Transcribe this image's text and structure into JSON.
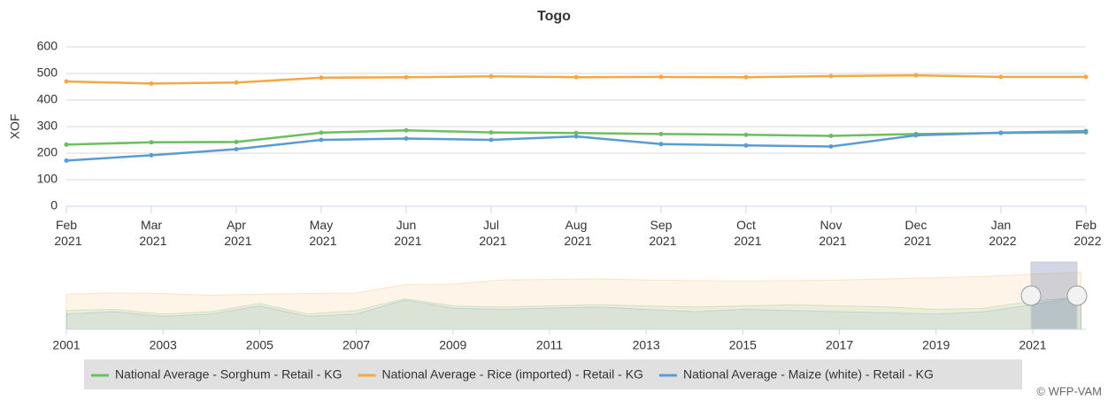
{
  "chart_data": {
    "type": "line",
    "title": "Togo",
    "y_label": "XOF",
    "categories": [
      "Feb 2021",
      "Mar 2021",
      "Apr 2021",
      "May 2021",
      "Jun 2021",
      "Jul 2021",
      "Aug 2021",
      "Sep 2021",
      "Oct 2021",
      "Nov 2021",
      "Dec 2021",
      "Jan 2022",
      "Feb 2022"
    ],
    "series": [
      {
        "name": "National Average - Sorghum - Retail - KG",
        "color": "#6abf5e",
        "values": [
          232,
          241,
          242,
          277,
          286,
          278,
          276,
          272,
          269,
          265,
          272,
          276,
          278
        ]
      },
      {
        "name": "National Average - Rice (imported) - Retail - KG",
        "color": "#f4a742",
        "values": [
          470,
          462,
          466,
          484,
          486,
          489,
          486,
          487,
          486,
          490,
          493,
          487,
          487
        ]
      },
      {
        "name": "National Average - Maize (white) - Retail - KG",
        "color": "#5b9bd5",
        "values": [
          172,
          192,
          215,
          250,
          255,
          250,
          263,
          234,
          229,
          225,
          267,
          277,
          283
        ]
      }
    ],
    "ylim": [
      0,
      600
    ],
    "yticks": [
      0,
      100,
      200,
      300,
      400,
      500,
      600
    ],
    "grid": true,
    "navigator": {
      "xlim": [
        2001,
        2022.1
      ],
      "xticks": [
        2001,
        2003,
        2005,
        2007,
        2009,
        2011,
        2013,
        2015,
        2017,
        2019,
        2021
      ],
      "x": [
        2001,
        2002,
        2003,
        2004,
        2005,
        2006,
        2007,
        2008,
        2009,
        2010,
        2011,
        2012,
        2013,
        2014,
        2015,
        2016,
        2017,
        2018,
        2019,
        2020,
        2021,
        2022
      ],
      "series": [
        {
          "values": [
            160,
            170,
            130,
            150,
            220,
            130,
            160,
            260,
            200,
            190,
            200,
            210,
            200,
            190,
            200,
            210,
            200,
            190,
            170,
            180,
            240,
            278
          ]
        },
        {
          "values": [
            300,
            310,
            305,
            290,
            300,
            305,
            310,
            380,
            385,
            420,
            425,
            430,
            420,
            415,
            410,
            415,
            420,
            430,
            440,
            450,
            470,
            487
          ]
        },
        {
          "values": [
            130,
            150,
            110,
            130,
            200,
            110,
            130,
            250,
            180,
            170,
            180,
            190,
            170,
            150,
            170,
            160,
            150,
            140,
            130,
            150,
            210,
            283
          ]
        }
      ]
    },
    "credit": "© WFP-VAM"
  }
}
